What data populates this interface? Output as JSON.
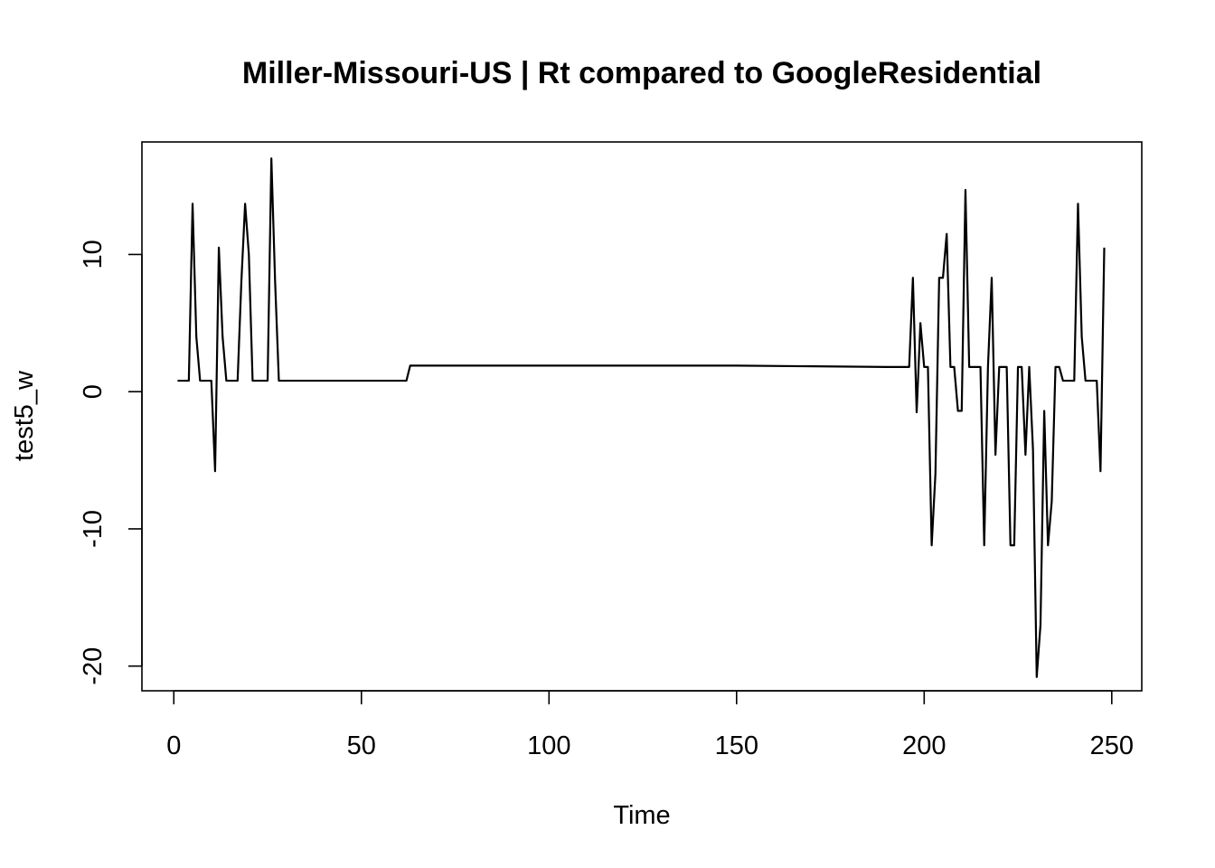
{
  "chart_data": {
    "type": "line",
    "title": "Miller-Missouri-US | Rt compared to GoogleResidential",
    "xlabel": "Time",
    "ylabel": "test5_w",
    "xlim": [
      -8.5,
      258
    ],
    "ylim": [
      -21.8,
      18.2
    ],
    "xticks": [
      0,
      50,
      100,
      150,
      200,
      250
    ],
    "yticks": [
      -20,
      -10,
      0,
      10
    ],
    "grid": false,
    "legend": "none",
    "line_color": "#000000",
    "x": [
      1,
      2,
      3,
      4,
      5,
      6,
      7,
      8,
      9,
      10,
      11,
      12,
      13,
      14,
      15,
      16,
      17,
      18,
      19,
      20,
      21,
      22,
      23,
      24,
      25,
      26,
      27,
      28,
      62,
      63,
      64,
      100,
      150,
      190,
      196,
      197,
      198,
      199,
      200,
      201,
      202,
      203,
      204,
      205,
      206,
      207,
      208,
      209,
      210,
      211,
      212,
      213,
      214,
      215,
      216,
      217,
      218,
      219,
      220,
      221,
      222,
      223,
      224,
      225,
      226,
      227,
      228,
      229,
      230,
      231,
      232,
      233,
      234,
      235,
      236,
      237,
      238,
      239,
      240,
      241,
      242,
      243,
      244,
      245,
      246,
      247,
      248
    ],
    "y": [
      0.8,
      0.8,
      0.8,
      0.8,
      13.7,
      4,
      0.8,
      0.8,
      0.8,
      0.8,
      -5.8,
      10.5,
      4,
      0.8,
      0.8,
      0.8,
      0.8,
      8,
      13.7,
      10,
      0.8,
      0.8,
      0.8,
      0.8,
      0.8,
      17,
      8,
      0.8,
      0.8,
      1.9,
      1.9,
      1.9,
      1.9,
      1.8,
      1.8,
      8.3,
      -1.5,
      5,
      1.8,
      1.8,
      -11.2,
      -6,
      8.3,
      8.3,
      11.5,
      1.8,
      1.8,
      -1.4,
      -1.4,
      14.7,
      1.8,
      1.8,
      1.8,
      1.8,
      -11.2,
      1.8,
      8.3,
      -4.6,
      1.8,
      1.8,
      1.8,
      -11.2,
      -11.2,
      1.8,
      1.8,
      -4.6,
      1.8,
      -4.2,
      -20.8,
      -17,
      -1.4,
      -11.2,
      -8,
      1.8,
      1.8,
      0.8,
      0.8,
      0.8,
      0.8,
      13.7,
      4,
      0.8,
      0.8,
      0.8,
      0.8,
      -5.8,
      10.5
    ]
  }
}
